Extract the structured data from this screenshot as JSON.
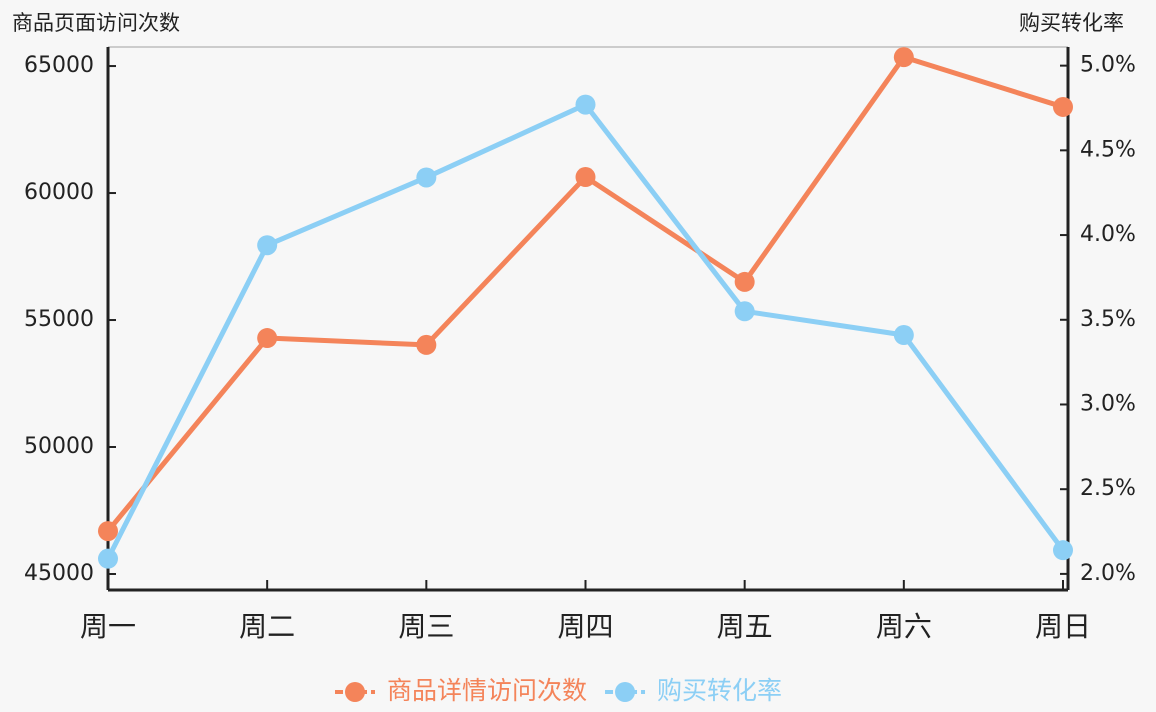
{
  "chart_data": {
    "type": "line",
    "y_title": "商品页面访问次数",
    "y2_title": "购买转化率",
    "categories": [
      "周一",
      "周二",
      "周三",
      "周四",
      "周五",
      "周六",
      "周日"
    ],
    "series": [
      {
        "name": "商品详情访问次数",
        "color": "#f4845a",
        "values": [
          46690,
          54290,
          54020,
          60630,
          56500,
          65350,
          63390
        ]
      },
      {
        "name": "购买转化率",
        "color": "#8ccff5",
        "axis": "y2",
        "values": [
          2.09,
          3.94,
          4.34,
          4.77,
          3.55,
          3.41,
          2.14
        ]
      }
    ],
    "ylim": [
      44370,
      65750
    ],
    "yticks": [
      45000,
      50000,
      55000,
      60000,
      65000
    ],
    "y2lim": [
      1.905,
      5.11
    ],
    "y2ticks": [
      {
        "value": 2.0,
        "label": "2.0%"
      },
      {
        "value": 2.5,
        "label": "2.5%"
      },
      {
        "value": 3.0,
        "label": "3.0%"
      },
      {
        "value": 3.5,
        "label": "3.5%"
      },
      {
        "value": 4.0,
        "label": "4.0%"
      },
      {
        "value": 4.5,
        "label": "4.5%"
      },
      {
        "value": 5.0,
        "label": "5.0%"
      }
    ],
    "legend": "bottom"
  }
}
